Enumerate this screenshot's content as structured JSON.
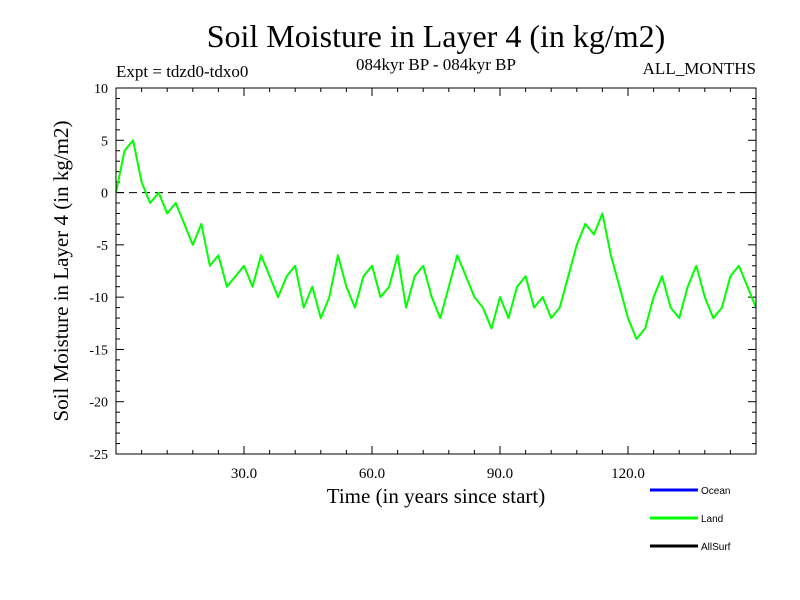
{
  "chart_data": {
    "type": "line",
    "title": "Soil Moisture in Layer 4 (in kg/m2)",
    "subtitle_left": "Expt = tdzd0-tdxo0",
    "subtitle_center": "084kyr BP - 084kyr BP",
    "subtitle_right": "ALL_MONTHS",
    "xlabel": "Time (in years since start)",
    "ylabel": "Soil Moisture in Layer 4 (in kg/m2)",
    "xlim": [
      0,
      150
    ],
    "ylim": [
      -25,
      10
    ],
    "xticks": [
      30,
      60,
      90,
      120
    ],
    "xtick_labels": [
      "30.0",
      "60.0",
      "90.0",
      "120.0"
    ],
    "yticks": [
      10,
      5,
      0,
      -5,
      -10,
      -15,
      -20,
      -25
    ],
    "ytick_labels": [
      "10",
      "5",
      "0",
      "-5",
      "-10",
      "-15",
      "-20",
      "-25"
    ],
    "reference_line": {
      "y": 0,
      "style": "dashed"
    },
    "legend": [
      {
        "name": "Ocean",
        "color": "#0000ff"
      },
      {
        "name": "Land",
        "color": "#00ff00"
      },
      {
        "name": "AllSurf",
        "color": "#000000"
      }
    ],
    "legend_position": "bottom-right",
    "series": [
      {
        "name": "Land",
        "color": "#00ff00",
        "x": [
          0,
          2,
          4,
          6,
          8,
          10,
          12,
          14,
          16,
          18,
          20,
          22,
          24,
          26,
          28,
          30,
          32,
          34,
          36,
          38,
          40,
          42,
          44,
          46,
          48,
          50,
          52,
          54,
          56,
          58,
          60,
          62,
          64,
          66,
          68,
          70,
          72,
          74,
          76,
          78,
          80,
          82,
          84,
          86,
          88,
          90,
          92,
          94,
          96,
          98,
          100,
          102,
          104,
          106,
          108,
          110,
          112,
          114,
          116,
          118,
          120,
          122,
          124,
          126,
          128,
          130,
          132,
          134,
          136,
          138,
          140,
          142,
          144,
          146,
          148,
          150
        ],
        "values": [
          0,
          4,
          5,
          1,
          -1,
          0,
          -2,
          -1,
          -3,
          -5,
          -3,
          -7,
          -6,
          -9,
          -8,
          -7,
          -9,
          -6,
          -8,
          -10,
          -8,
          -7,
          -11,
          -9,
          -12,
          -10,
          -6,
          -9,
          -11,
          -8,
          -7,
          -10,
          -9,
          -6,
          -11,
          -8,
          -7,
          -10,
          -12,
          -9,
          -6,
          -8,
          -10,
          -11,
          -13,
          -10,
          -12,
          -9,
          -8,
          -11,
          -10,
          -12,
          -11,
          -8,
          -5,
          -3,
          -4,
          -2,
          -6,
          -9,
          -12,
          -14,
          -13,
          -10,
          -8,
          -11,
          -12,
          -9,
          -7,
          -10,
          -12,
          -11,
          -8,
          -7,
          -9,
          -11
        ]
      }
    ]
  }
}
